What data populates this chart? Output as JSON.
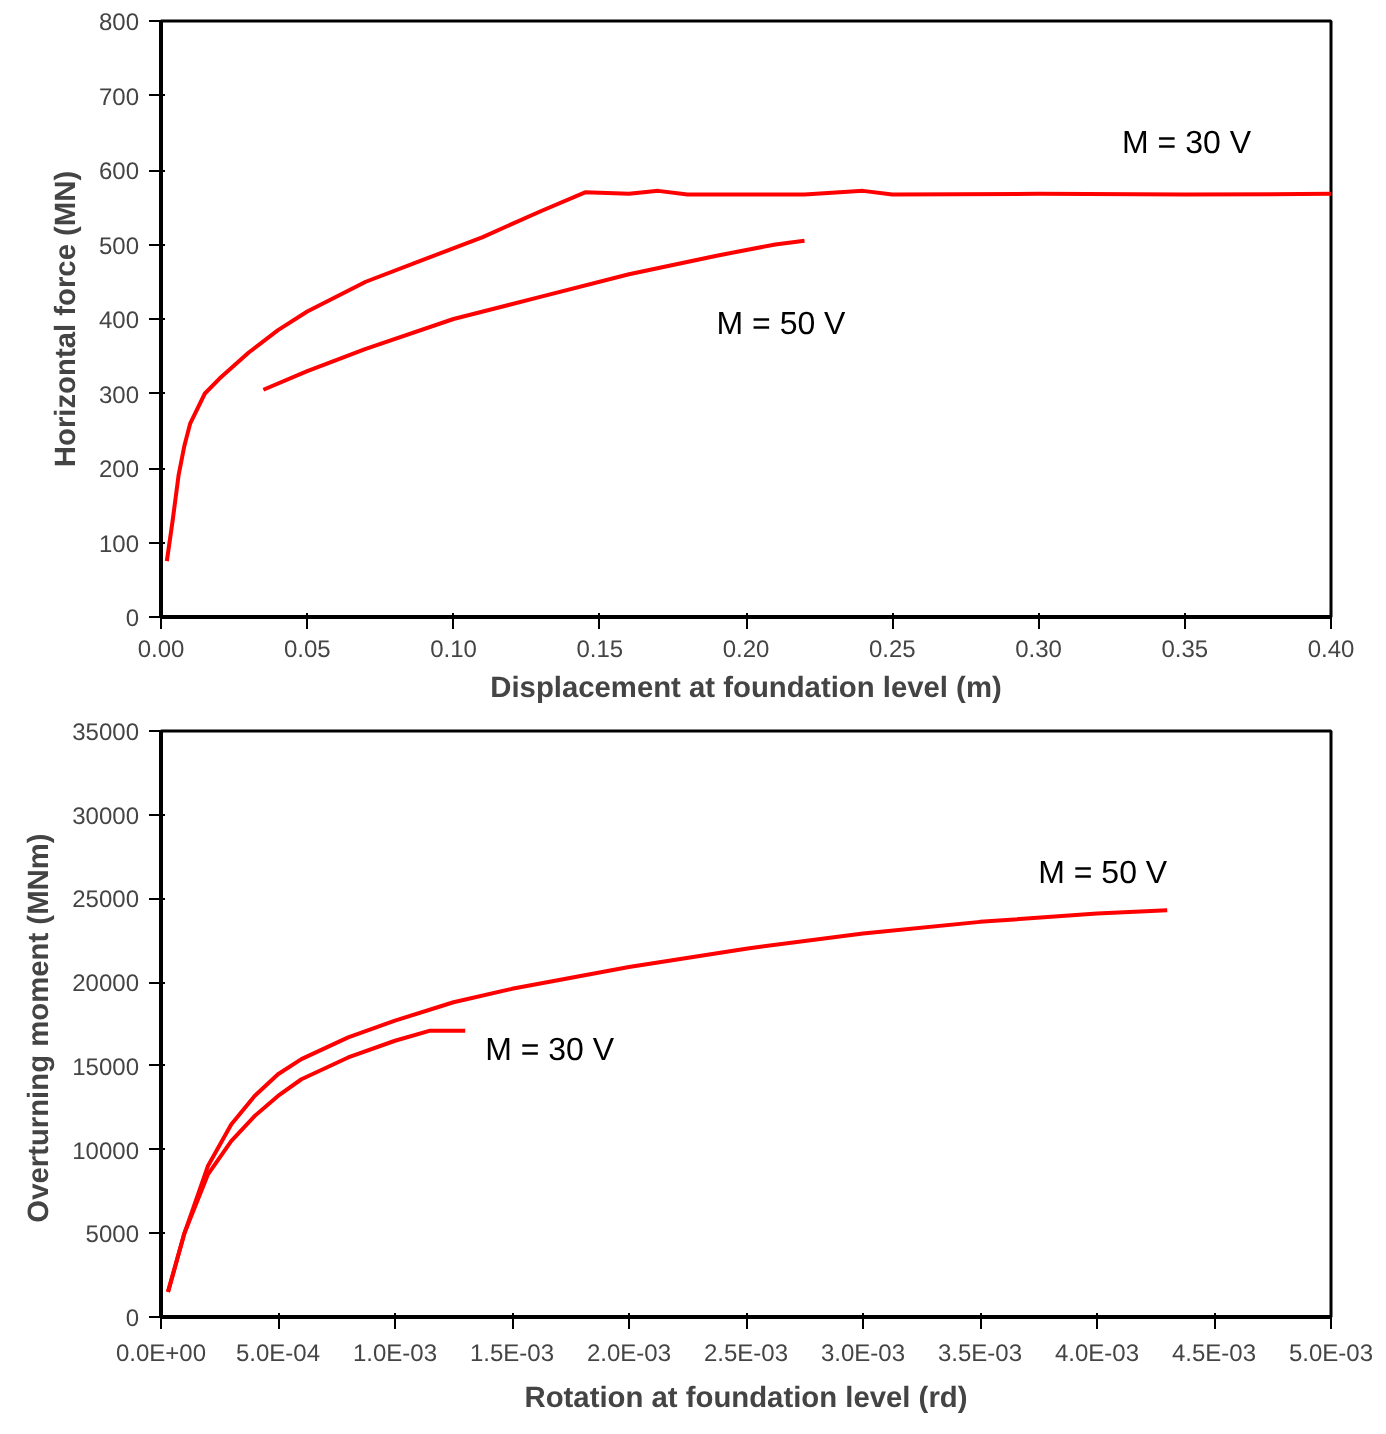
{
  "chart_data": [
    {
      "type": "line",
      "xlabel": "Displacement at foundation level (m)",
      "ylabel": "Horizontal force (MN)",
      "xlim": [
        0,
        0.4
      ],
      "ylim": [
        0,
        800
      ],
      "xticks": [
        {
          "value": 0,
          "label": "0.00"
        },
        {
          "value": 0.05,
          "label": "0.05"
        },
        {
          "value": 0.1,
          "label": "0.10"
        },
        {
          "value": 0.15,
          "label": "0.15"
        },
        {
          "value": 0.2,
          "label": "0.20"
        },
        {
          "value": 0.25,
          "label": "0.25"
        },
        {
          "value": 0.3,
          "label": "0.30"
        },
        {
          "value": 0.35,
          "label": "0.35"
        },
        {
          "value": 0.4,
          "label": "0.40"
        }
      ],
      "yticks": [
        0,
        100,
        200,
        300,
        400,
        500,
        600,
        700,
        800
      ],
      "grid": false,
      "series": [
        {
          "name": "M = 30 V",
          "color": "#ff0000",
          "x": [
            0.002,
            0.004,
            0.006,
            0.008,
            0.01,
            0.015,
            0.02,
            0.03,
            0.04,
            0.05,
            0.07,
            0.09,
            0.11,
            0.13,
            0.145,
            0.16,
            0.17,
            0.18,
            0.22,
            0.24,
            0.25,
            0.3,
            0.35,
            0.4
          ],
          "values": [
            75,
            130,
            190,
            230,
            260,
            300,
            320,
            355,
            385,
            410,
            450,
            480,
            510,
            545,
            570,
            568,
            572,
            567,
            567,
            572,
            567,
            568,
            567,
            568
          ]
        },
        {
          "name": "M = 50 V",
          "color": "#ff0000",
          "x": [
            0.035,
            0.05,
            0.07,
            0.1,
            0.13,
            0.16,
            0.19,
            0.21,
            0.22
          ],
          "values": [
            305,
            330,
            360,
            400,
            430,
            460,
            485,
            500,
            505
          ]
        }
      ]
    },
    {
      "type": "line",
      "xlabel": "Rotation at foundation level (rd)",
      "ylabel": "Overturning moment  (MNm)",
      "xlim": [
        0,
        0.005
      ],
      "ylim": [
        0,
        35000
      ],
      "xticks": [
        {
          "value": 0,
          "label": "0.0E+00"
        },
        {
          "value": 0.0005,
          "label": "5.0E-04"
        },
        {
          "value": 0.001,
          "label": "1.0E-03"
        },
        {
          "value": 0.0015,
          "label": "1.5E-03"
        },
        {
          "value": 0.002,
          "label": "2.0E-03"
        },
        {
          "value": 0.0025,
          "label": "2.5E-03"
        },
        {
          "value": 0.003,
          "label": "3.0E-03"
        },
        {
          "value": 0.0035,
          "label": "3.5E-03"
        },
        {
          "value": 0.004,
          "label": "4.0E-03"
        },
        {
          "value": 0.0045,
          "label": "4.5E-03"
        },
        {
          "value": 0.005,
          "label": "5.0E-03"
        }
      ],
      "yticks": [
        0,
        5000,
        10000,
        15000,
        20000,
        25000,
        30000,
        35000
      ],
      "grid": false,
      "series": [
        {
          "name": "M = 50 V",
          "color": "#ff0000",
          "x": [
            3e-05,
            0.0001,
            0.0002,
            0.0003,
            0.0004,
            0.0005,
            0.0006,
            0.0008,
            0.001,
            0.00125,
            0.0015,
            0.002,
            0.0025,
            0.003,
            0.0035,
            0.004,
            0.0043
          ],
          "values": [
            1500,
            5000,
            9000,
            11500,
            13200,
            14500,
            15400,
            16700,
            17700,
            18800,
            19600,
            20900,
            22000,
            22900,
            23600,
            24100,
            24300
          ]
        },
        {
          "name": "M = 30 V",
          "color": "#ff0000",
          "x": [
            3e-05,
            0.0001,
            0.0002,
            0.0003,
            0.0004,
            0.0005,
            0.0006,
            0.0008,
            0.001,
            0.00115,
            0.0013
          ],
          "values": [
            1500,
            5000,
            8500,
            10500,
            12000,
            13200,
            14200,
            15500,
            16500,
            17100,
            17100
          ]
        }
      ]
    }
  ]
}
